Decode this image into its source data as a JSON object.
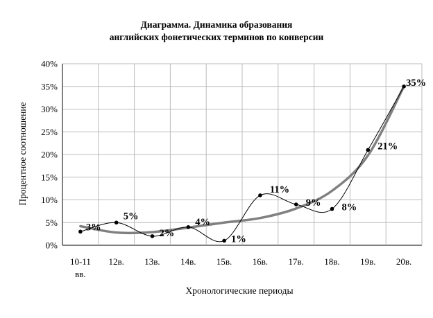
{
  "chart_data": {
    "type": "line",
    "title_lines": [
      "Диаграмма. Динамика образования",
      "английских фонетических терминов по конверсии"
    ],
    "xlabel": "Хронологические периоды",
    "ylabel": "Процентное соотношение",
    "categories": [
      [
        "10-11",
        "вв."
      ],
      [
        "12в."
      ],
      [
        "13в."
      ],
      [
        "14в."
      ],
      [
        "15в."
      ],
      [
        "16в."
      ],
      [
        "17в."
      ],
      [
        "18в."
      ],
      [
        "19в."
      ],
      [
        "20в."
      ]
    ],
    "y_ticks": [
      "0%",
      "5%",
      "10%",
      "15%",
      "20%",
      "25%",
      "30%",
      "35%",
      "40%"
    ],
    "ylim": [
      0,
      40
    ],
    "grid": true,
    "legend": "none",
    "series": [
      {
        "style": "black thin smoothed line with dot markers",
        "color": "#000000",
        "values": [
          3,
          5,
          2,
          4,
          1,
          11,
          9,
          8,
          21,
          35
        ],
        "data_labels": [
          "3%",
          "5%",
          "2%",
          "4%",
          "1%",
          "11%",
          "9%",
          "8%",
          "21%",
          "35%"
        ]
      },
      {
        "style": "thick gray polynomial trend line",
        "color": "#808080",
        "values": [
          4.2,
          2.8,
          2.9,
          3.9,
          5.0,
          6.0,
          8.1,
          12.0,
          19.8,
          35.0
        ]
      }
    ]
  }
}
